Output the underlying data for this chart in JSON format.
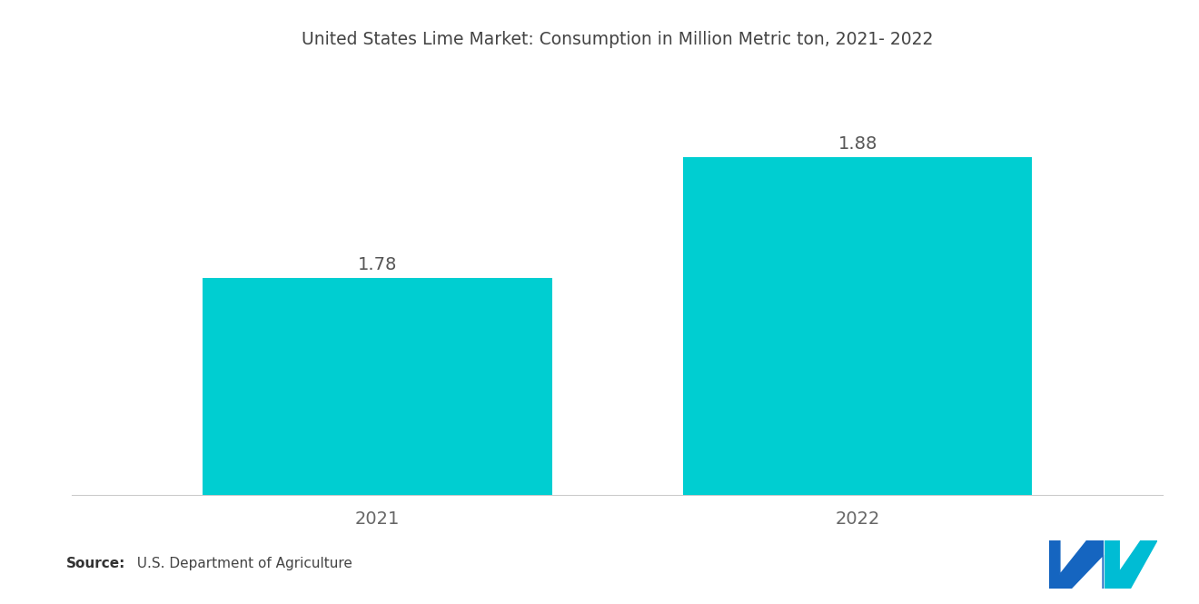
{
  "title": "United States Lime Market: Consumption in Million Metric ton, 2021- 2022",
  "categories": [
    "2021",
    "2022"
  ],
  "values": [
    1.78,
    1.88
  ],
  "bar_color": "#00CED1",
  "background_color": "#ffffff",
  "title_fontsize": 13.5,
  "label_fontsize": 14,
  "value_fontsize": 14,
  "source_bold": "Source:",
  "source_text": "  U.S. Department of Agriculture",
  "source_fontsize": 11,
  "ylim_min": 1.6,
  "ylim_max": 1.95,
  "bar_width": 0.32,
  "x_positions": [
    0.28,
    0.72
  ]
}
